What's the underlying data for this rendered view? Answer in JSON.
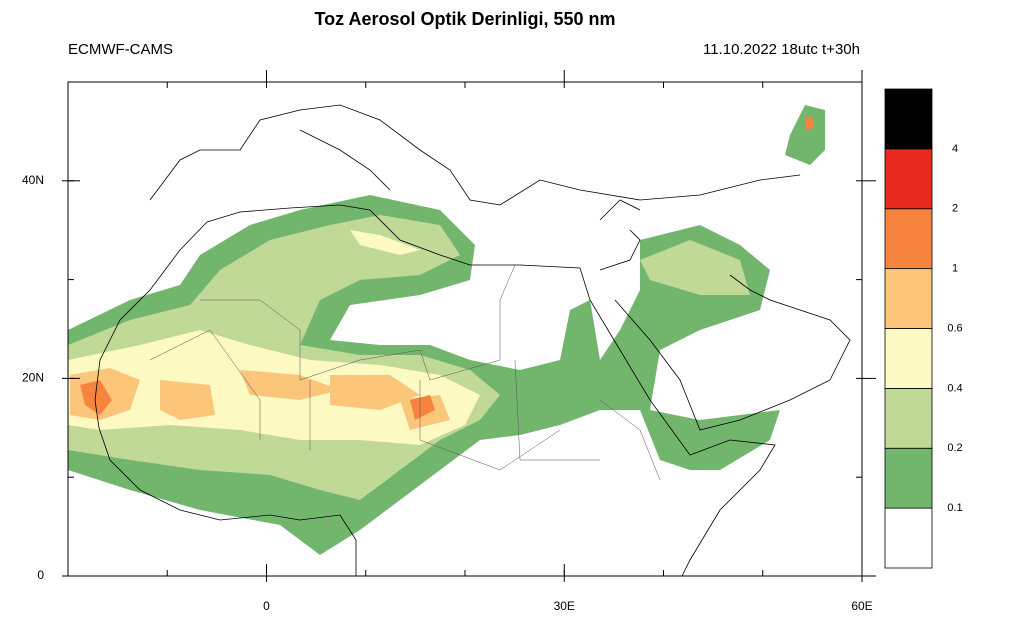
{
  "title": "Toz Aerosol Optik Derinligi, 550 nm",
  "left_label": "ECMWF-CAMS",
  "right_label": "11.10.2022 18utc t+30h",
  "map": {
    "xlim": [
      -20,
      60
    ],
    "ylim": [
      0,
      50
    ],
    "xticks": [
      0,
      {
        "value": 30,
        "label": "30E"
      },
      {
        "value": 60,
        "label": "60E"
      }
    ],
    "yticks": [
      0,
      {
        "value": 20,
        "label": "20N"
      },
      {
        "value": 40,
        "label": "40N"
      }
    ]
  },
  "colorbar": {
    "levels": [
      0.1,
      0.2,
      0.4,
      0.6,
      1,
      2,
      4
    ],
    "colors": [
      "#ffffff",
      "#72b66e",
      "#c0d997",
      "#fdf9c3",
      "#fbc57a",
      "#f7843e",
      "#e8291f",
      "#000000"
    ]
  }
}
